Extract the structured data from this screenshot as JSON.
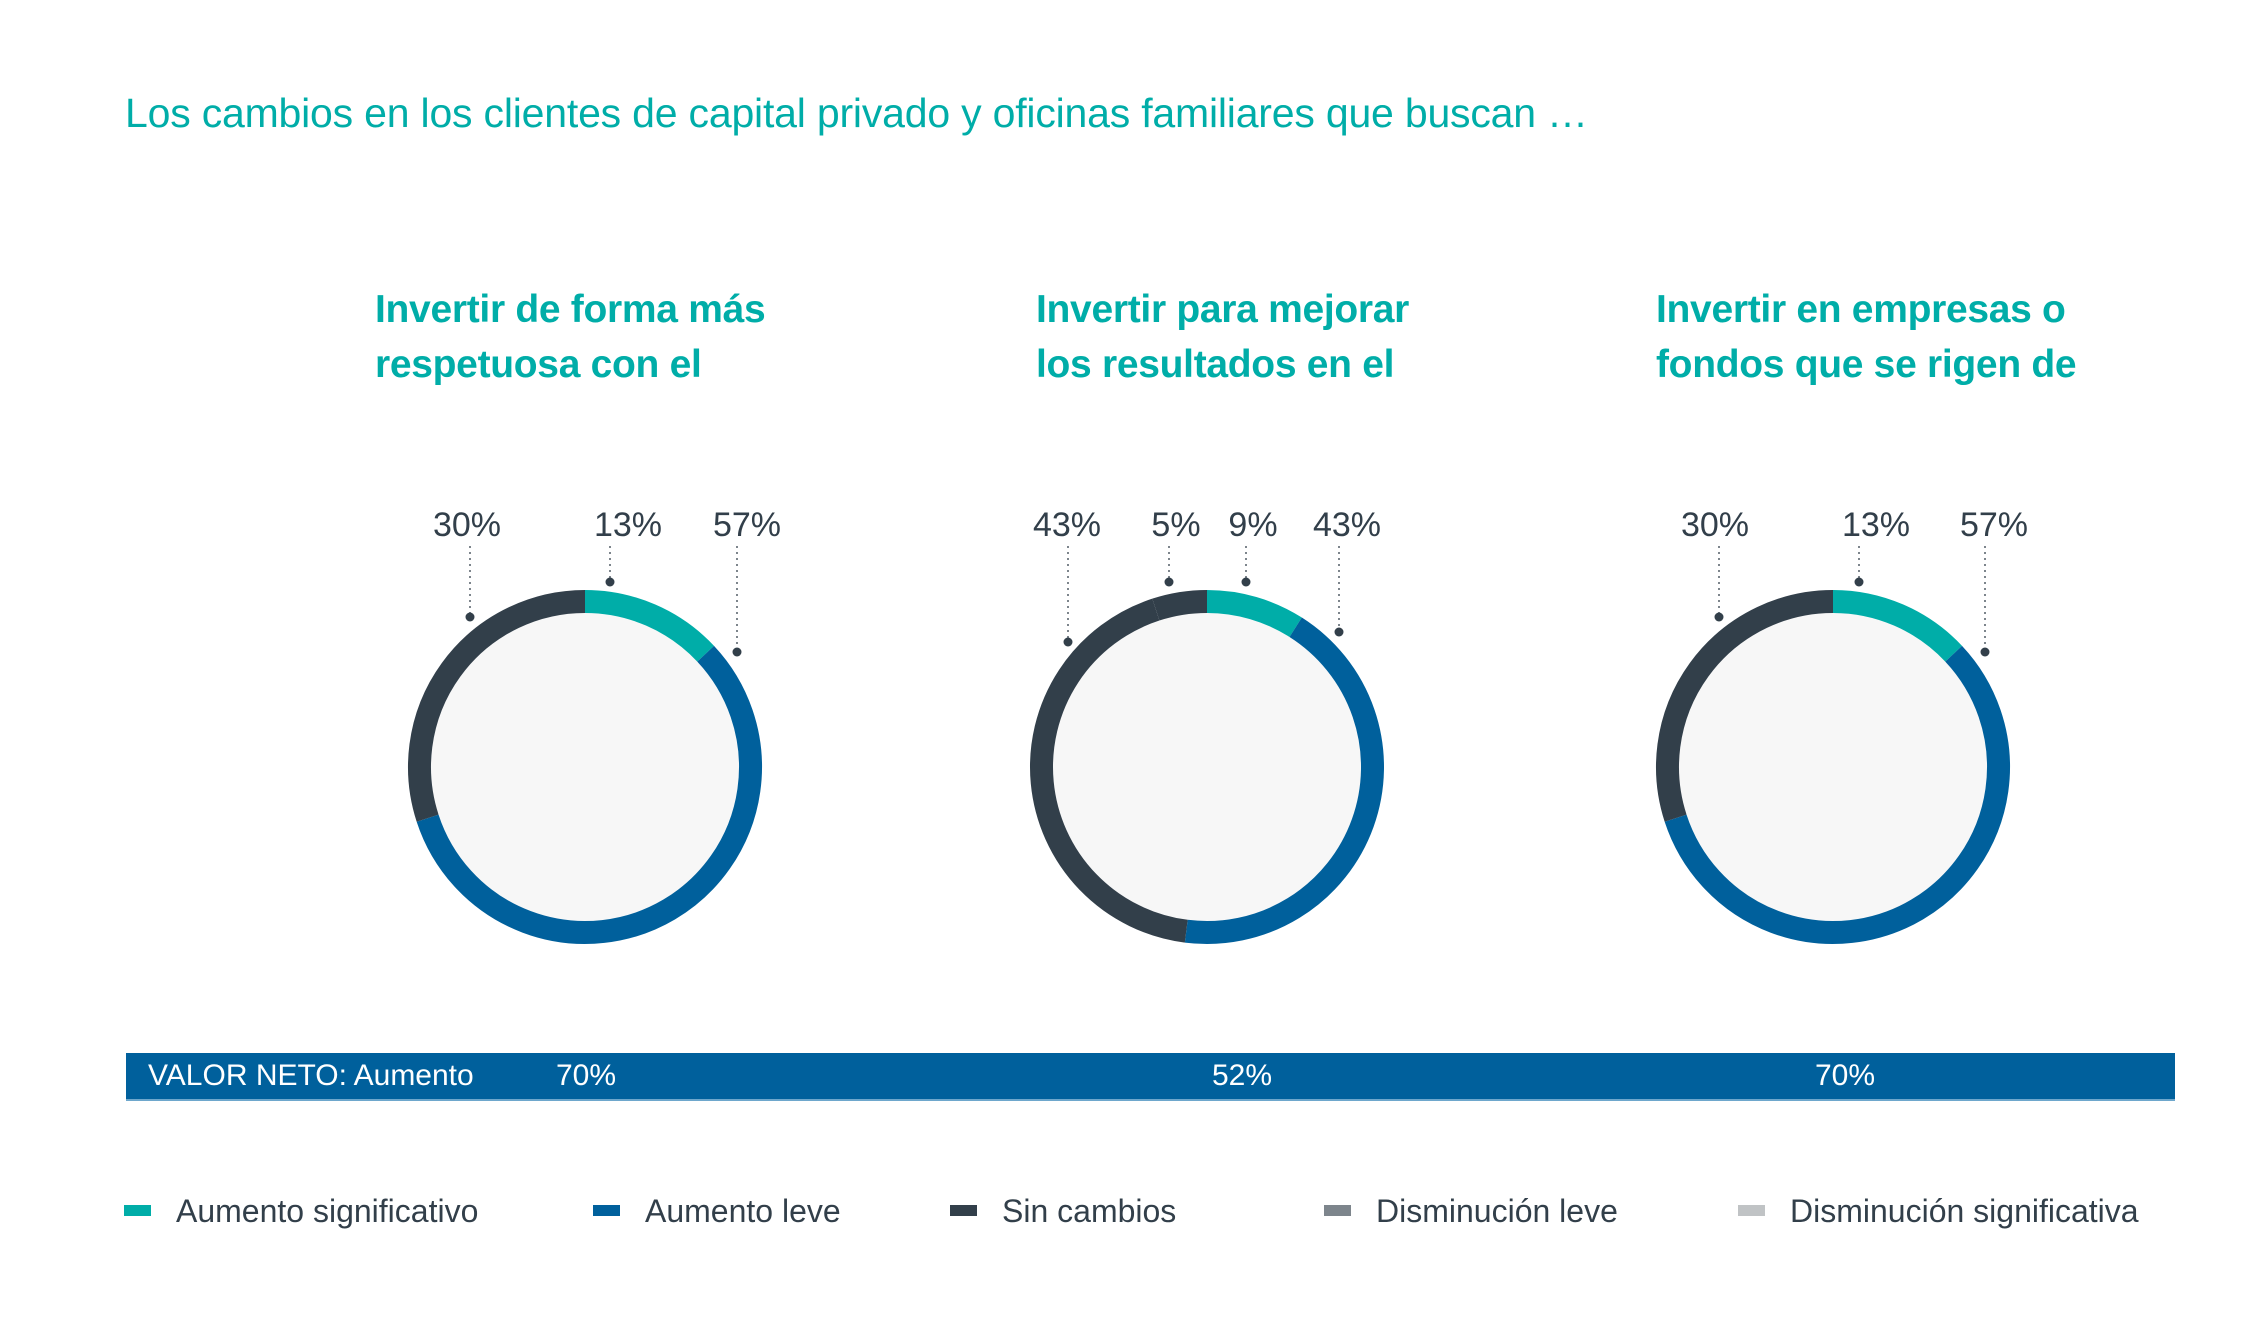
{
  "title": "Los cambios en los clientes de capital privado y oficinas familiares que buscan …",
  "colors": {
    "aumento_significativo": "#00ADA8",
    "aumento_leve": "#00609C",
    "sin_cambios": "#323F4A",
    "disminucion_leve": "#7D858C",
    "disminucion_significativa": "#C0C3C5",
    "donut_fill": "#F7F7F7",
    "text": "#323F4A"
  },
  "chart_data": [
    {
      "type": "pie",
      "variant": "donut",
      "title_lines": [
        "Invertir de forma más",
        "respetuosa con el"
      ],
      "slices": [
        {
          "category": "Aumento significativo",
          "value": 13,
          "label": "13%",
          "color": "#00ADA8"
        },
        {
          "category": "Aumento leve",
          "value": 57,
          "label": "57%",
          "color": "#00609C"
        },
        {
          "category": "Sin cambios",
          "value": 30,
          "label": "30%",
          "color": "#323F4A"
        }
      ],
      "net_value": "70%"
    },
    {
      "type": "pie",
      "variant": "donut",
      "title_lines": [
        "Invertir para mejorar",
        "los resultados en el"
      ],
      "slices": [
        {
          "category": "Aumento significativo",
          "value": 9,
          "label": "9%",
          "color": "#00ADA8"
        },
        {
          "category": "Aumento leve",
          "value": 43,
          "label": "43%",
          "color": "#00609C"
        },
        {
          "category": "Sin cambios",
          "value": 43,
          "label": "43%",
          "color": "#323F4A"
        },
        {
          "category": "Sin cambios",
          "value": 5,
          "label": "5%",
          "color": "#323F4A"
        }
      ],
      "net_value": "52%"
    },
    {
      "type": "pie",
      "variant": "donut",
      "title_lines": [
        "Invertir en empresas o",
        "fondos que se rigen de"
      ],
      "slices": [
        {
          "category": "Aumento significativo",
          "value": 13,
          "label": "13%",
          "color": "#00ADA8"
        },
        {
          "category": "Aumento leve",
          "value": 57,
          "label": "57%",
          "color": "#00609C"
        },
        {
          "category": "Sin cambios",
          "value": 30,
          "label": "30%",
          "color": "#323F4A"
        }
      ],
      "net_value": "70%"
    }
  ],
  "net_bar": {
    "label": "VALOR NETO: Aumento",
    "values": [
      "70%",
      "52%",
      "70%"
    ]
  },
  "legend": [
    {
      "label": "Aumento significativo",
      "color": "#00ADA8"
    },
    {
      "label": "Aumento leve",
      "color": "#00609C"
    },
    {
      "label": "Sin cambios",
      "color": "#323F4A"
    },
    {
      "label": "Disminución leve",
      "color": "#7D858C"
    },
    {
      "label": "Disminución significativa",
      "color": "#C0C3C5"
    }
  ]
}
